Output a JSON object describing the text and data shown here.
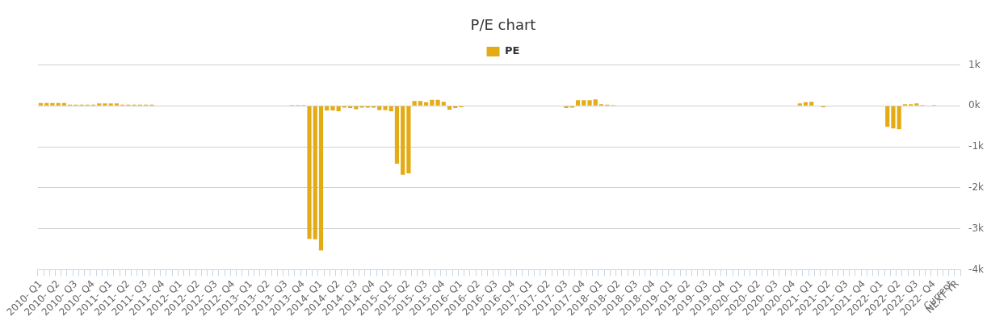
{
  "chart_data": {
    "type": "bar",
    "title": "P/E chart",
    "categories": [
      "2010- Q1",
      null,
      null,
      "2010- Q2",
      null,
      null,
      "2010- Q3",
      null,
      null,
      "2010- Q4",
      null,
      null,
      "2011- Q1",
      null,
      null,
      "2011- Q2",
      null,
      null,
      "2011- Q3",
      null,
      null,
      "2011- Q4",
      null,
      null,
      "2012- Q1",
      null,
      null,
      "2012- Q2",
      null,
      null,
      "2012- Q3",
      null,
      null,
      "2012- Q4",
      null,
      null,
      "2013- Q1",
      null,
      null,
      "2013- Q2",
      null,
      null,
      "2013- Q3",
      null,
      null,
      "2013- Q4",
      null,
      null,
      "2014- Q1",
      null,
      null,
      "2014- Q2",
      null,
      null,
      "2014- Q3",
      null,
      null,
      "2014- Q4",
      null,
      null,
      "2015- Q1",
      null,
      null,
      "2015- Q2",
      null,
      null,
      "2015- Q3",
      null,
      null,
      "2015- Q4",
      null,
      null,
      "2016- Q1",
      null,
      null,
      "2016- Q2",
      null,
      null,
      "2016- Q3",
      null,
      null,
      "2016- Q4",
      null,
      null,
      "2017- Q1",
      null,
      null,
      "2017- Q2",
      null,
      null,
      "2017- Q3",
      null,
      null,
      "2017- Q4",
      null,
      null,
      "2018- Q1",
      null,
      null,
      "2018- Q2",
      null,
      null,
      "2018- Q3",
      null,
      null,
      "2018- Q4",
      null,
      null,
      "2019- Q1",
      null,
      null,
      "2019- Q2",
      null,
      null,
      "2019- Q3",
      null,
      null,
      "2019- Q4",
      null,
      null,
      "2020- Q1",
      null,
      null,
      "2020- Q2",
      null,
      null,
      "2020- Q3",
      null,
      null,
      "2020- Q4",
      null,
      null,
      "2021- Q1",
      null,
      null,
      "2021- Q2",
      null,
      null,
      "2021- Q3",
      null,
      null,
      "2021- Q4",
      null,
      null,
      "2022- Q1",
      null,
      null,
      "2022- Q2",
      null,
      null,
      "2022- Q3",
      null,
      null,
      "2022- Q4",
      null,
      null,
      "Current",
      "NEXT YR"
    ],
    "series": [
      {
        "name": "PE",
        "color": "#e3ac14",
        "values": [
          70,
          70,
          70,
          70,
          70,
          30,
          30,
          30,
          30,
          30,
          60,
          60,
          60,
          60,
          30,
          30,
          30,
          30,
          30,
          30,
          null,
          null,
          null,
          null,
          null,
          null,
          null,
          null,
          null,
          null,
          null,
          null,
          null,
          null,
          null,
          null,
          null,
          null,
          null,
          null,
          null,
          null,
          null,
          20,
          20,
          20,
          -3250,
          -3260,
          -3530,
          -110,
          -110,
          -130,
          -40,
          -50,
          -80,
          -40,
          -40,
          -40,
          -100,
          -100,
          -130,
          -1410,
          -1680,
          -1650,
          120,
          120,
          90,
          150,
          150,
          100,
          -90,
          -50,
          -30,
          null,
          null,
          null,
          null,
          null,
          null,
          null,
          null,
          null,
          null,
          null,
          null,
          null,
          null,
          null,
          null,
          null,
          -50,
          -40,
          140,
          140,
          140,
          160,
          40,
          30,
          20,
          null,
          null,
          null,
          null,
          null,
          null,
          null,
          null,
          null,
          null,
          null,
          null,
          null,
          null,
          null,
          null,
          null,
          null,
          null,
          null,
          null,
          null,
          null,
          null,
          null,
          null,
          null,
          null,
          null,
          null,
          null,
          60,
          90,
          100,
          null,
          -30,
          null,
          null,
          null,
          null,
          null,
          null,
          null,
          null,
          null,
          null,
          -510,
          -550,
          -570,
          40,
          40,
          60,
          20,
          null,
          20,
          null,
          null,
          null,
          null
        ]
      }
    ],
    "ylim": [
      -4000,
      1000
    ],
    "yticks": [
      {
        "value": 1000,
        "label": "1k"
      },
      {
        "value": 0,
        "label": "0k"
      },
      {
        "value": -1000,
        "label": "-1k"
      },
      {
        "value": -2000,
        "label": "-2k"
      },
      {
        "value": -3000,
        "label": "-3k"
      },
      {
        "value": -4000,
        "label": "-4k"
      }
    ],
    "grid": "y",
    "legend": "top"
  }
}
